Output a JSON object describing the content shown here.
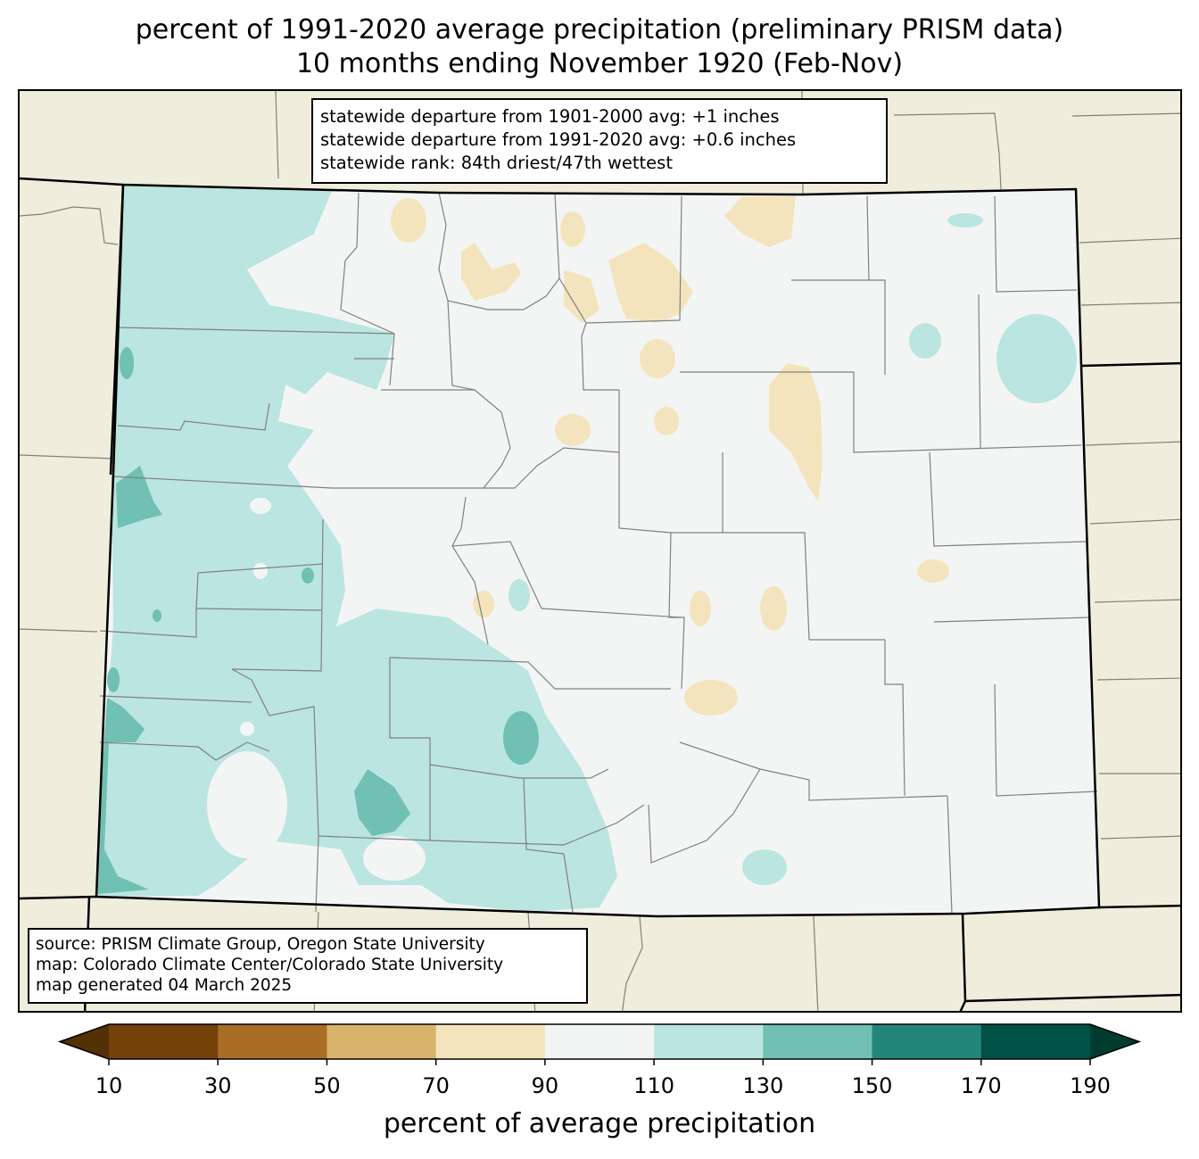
{
  "title": {
    "line1": "percent of 1991-2020 average precipitation (preliminary PRISM data)",
    "line2": "10 months ending November 1920 (Feb-Nov)"
  },
  "stats_box": {
    "line1": "statewide departure from 1901-2000 avg: +1 inches",
    "line2": "statewide departure from 1991-2020 avg: +0.6 inches",
    "line3": "statewide rank: 84th driest/47th wettest"
  },
  "source_box": {
    "line1": "source: PRISM Climate Group, Oregon State University",
    "line2": "map: Colorado Climate Center/Colorado State University",
    "line3": "map generated 04 March 2025"
  },
  "colorbar": {
    "title": "percent of average precipitation",
    "ticks": [
      "10",
      "30",
      "50",
      "70",
      "90",
      "110",
      "130",
      "150",
      "170",
      "190"
    ],
    "colors": [
      "#543005",
      "#744109",
      "#a96d24",
      "#d8b36c",
      "#f4e4bd",
      "#f3f5f4",
      "#bbe5e0",
      "#70c0b3",
      "#22857a",
      "#005246",
      "#003c30"
    ]
  },
  "map_colors": {
    "background_states": "#efeedc",
    "near_normal": "#f3f5f4",
    "wet_light": "#bbe5e0",
    "wet_medium": "#70c0b3",
    "dry_light": "#f4e4bd",
    "county_lines": "#808080",
    "state_lines": "#000000"
  }
}
